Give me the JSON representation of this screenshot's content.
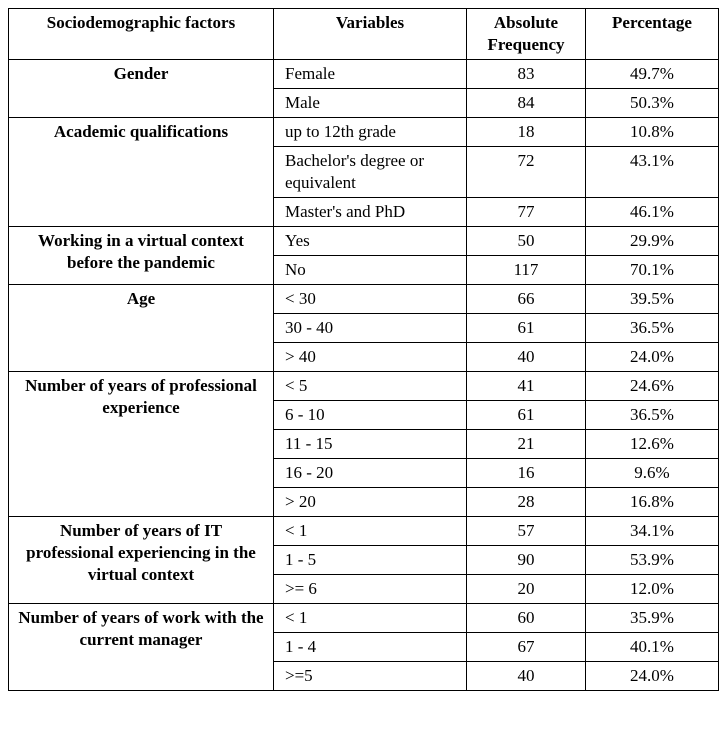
{
  "table": {
    "header": [
      "Sociodemographic factors",
      "Variables",
      "Absolute Frequency",
      "Percentage"
    ],
    "groups": [
      {
        "factor": "Gender",
        "rows": [
          {
            "variable": "Female",
            "frequency": 83,
            "percentage": "49.7%"
          },
          {
            "variable": "Male",
            "frequency": 84,
            "percentage": "50.3%"
          }
        ]
      },
      {
        "factor": "Academic qualifications",
        "rows": [
          {
            "variable": "up to 12th grade",
            "frequency": 18,
            "percentage": "10.8%"
          },
          {
            "variable": "Bachelor's degree or equivalent",
            "frequency": 72,
            "percentage": "43.1%"
          },
          {
            "variable": "Master's and PhD",
            "frequency": 77,
            "percentage": "46.1%"
          }
        ]
      },
      {
        "factor": "Working in a virtual context before the pandemic",
        "rows": [
          {
            "variable": "Yes",
            "frequency": 50,
            "percentage": "29.9%"
          },
          {
            "variable": "No",
            "frequency": 117,
            "percentage": "70.1%"
          }
        ]
      },
      {
        "factor": "Age",
        "rows": [
          {
            "variable": "< 30",
            "frequency": 66,
            "percentage": "39.5%"
          },
          {
            "variable": "30 - 40",
            "frequency": 61,
            "percentage": "36.5%"
          },
          {
            "variable": "> 40",
            "frequency": 40,
            "percentage": "24.0%"
          }
        ]
      },
      {
        "factor": "Number of years of professional experience",
        "rows": [
          {
            "variable": "< 5",
            "frequency": 41,
            "percentage": "24.6%"
          },
          {
            "variable": "6 - 10",
            "frequency": 61,
            "percentage": "36.5%"
          },
          {
            "variable": "11 - 15",
            "frequency": 21,
            "percentage": "12.6%"
          },
          {
            "variable": "16 - 20",
            "frequency": 16,
            "percentage": "9.6%"
          },
          {
            "variable": "> 20",
            "frequency": 28,
            "percentage": "16.8%"
          }
        ]
      },
      {
        "factor": "Number of years of IT professional experiencing in the virtual context",
        "rows": [
          {
            "variable": "< 1",
            "frequency": 57,
            "percentage": "34.1%"
          },
          {
            "variable": "1 - 5",
            "frequency": 90,
            "percentage": "53.9%"
          },
          {
            "variable": ">= 6",
            "frequency": 20,
            "percentage": "12.0%"
          }
        ]
      },
      {
        "factor": "Number of years of work with the current manager",
        "rows": [
          {
            "variable": "< 1",
            "frequency": 60,
            "percentage": "35.9%"
          },
          {
            "variable": "1 - 4",
            "frequency": 67,
            "percentage": "40.1%"
          },
          {
            "variable": ">=5",
            "frequency": 40,
            "percentage": "24.0%"
          }
        ]
      }
    ]
  }
}
